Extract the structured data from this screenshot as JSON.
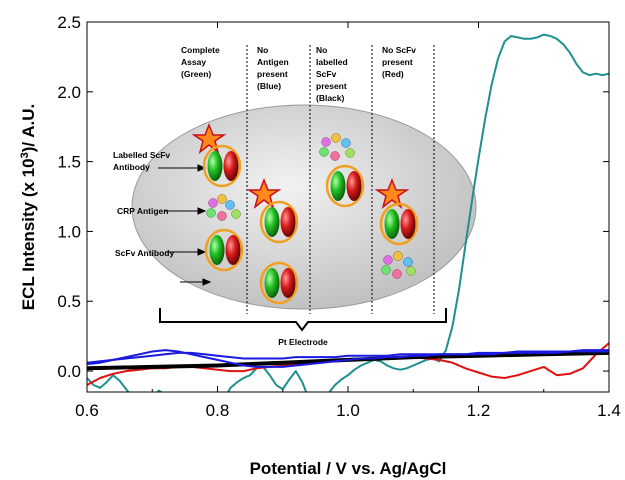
{
  "chart_data": {
    "type": "line",
    "xlabel": "Potential / V vs. Ag/AgCl",
    "ylabel": "ECL Intensity (x 10",
    "ylabel_sup": "3",
    "ylabel_tail": ")/ A.U.",
    "xlim": [
      0.6,
      1.4
    ],
    "ylim": [
      -0.15,
      2.5
    ],
    "x_ticks": [
      "0.6",
      "0.8",
      "1.0",
      "1.2",
      "1.4"
    ],
    "y_ticks": [
      "0.0",
      "0.5",
      "1.0",
      "1.5",
      "2.0",
      "2.5"
    ],
    "x_tick_values": [
      0.6,
      0.8,
      1.0,
      1.2,
      1.4
    ],
    "y_tick_values": [
      0.0,
      0.5,
      1.0,
      1.5,
      2.0,
      2.5
    ],
    "grid": false,
    "legend": "none",
    "series": [
      {
        "color": "#1f8f8f",
        "x": [
          0.6,
          0.61,
          0.62,
          0.63,
          0.64,
          0.65,
          0.66,
          0.67,
          0.68,
          0.69,
          0.7,
          0.71,
          0.72,
          0.73,
          0.74,
          0.75,
          0.76,
          0.77,
          0.78,
          0.79,
          0.8,
          0.81,
          0.82,
          0.83,
          0.84,
          0.85,
          0.86,
          0.87,
          0.88,
          0.89,
          0.9,
          0.91,
          0.92,
          0.93,
          0.94,
          0.95,
          0.96,
          0.97,
          0.98,
          0.99,
          1.0,
          1.01,
          1.02,
          1.03,
          1.04,
          1.05,
          1.06,
          1.07,
          1.08,
          1.09,
          1.1,
          1.11,
          1.12,
          1.13,
          1.14,
          1.15,
          1.16,
          1.17,
          1.18,
          1.19,
          1.2,
          1.21,
          1.22,
          1.23,
          1.24,
          1.25,
          1.26,
          1.27,
          1.28,
          1.29,
          1.3,
          1.31,
          1.32,
          1.33,
          1.34,
          1.35,
          1.36,
          1.37,
          1.38,
          1.39,
          1.4
        ],
        "y": [
          -0.05,
          -0.1,
          -0.12,
          -0.08,
          -0.03,
          -0.07,
          -0.13,
          -0.19,
          -0.25,
          -0.26,
          -0.2,
          -0.14,
          -0.17,
          -0.22,
          -0.25,
          -0.27,
          -0.25,
          -0.2,
          -0.16,
          -0.19,
          -0.24,
          -0.2,
          -0.12,
          -0.08,
          -0.05,
          -0.03,
          0.02,
          0.03,
          -0.03,
          -0.1,
          -0.13,
          -0.06,
          0.0,
          -0.08,
          -0.2,
          -0.26,
          -0.23,
          -0.16,
          -0.1,
          -0.06,
          -0.03,
          0.01,
          0.04,
          0.06,
          0.08,
          0.07,
          0.04,
          0.02,
          0.01,
          0.02,
          0.04,
          0.06,
          0.08,
          0.09,
          0.07,
          0.15,
          0.32,
          0.58,
          0.9,
          1.22,
          1.52,
          1.8,
          2.05,
          2.24,
          2.36,
          2.4,
          2.39,
          2.38,
          2.38,
          2.39,
          2.41,
          2.4,
          2.38,
          2.34,
          2.28,
          2.2,
          2.14,
          2.12,
          2.13,
          2.12,
          2.13
        ]
      },
      {
        "color": "#e01010",
        "x": [
          0.6,
          0.62,
          0.64,
          0.66,
          0.68,
          0.7,
          0.72,
          0.74,
          0.76,
          0.78,
          0.8,
          0.82,
          0.84,
          0.86,
          0.88,
          0.9,
          0.92,
          0.94,
          0.96,
          0.98,
          1.0,
          1.02,
          1.04,
          1.06,
          1.08,
          1.1,
          1.12,
          1.14,
          1.16,
          1.18,
          1.2,
          1.22,
          1.24,
          1.26,
          1.28,
          1.3,
          1.32,
          1.34,
          1.36,
          1.38,
          1.4
        ],
        "y": [
          -0.1,
          -0.05,
          -0.02,
          0.0,
          0.01,
          0.02,
          0.02,
          0.03,
          0.03,
          0.02,
          0.01,
          0.0,
          0.0,
          0.02,
          0.03,
          0.04,
          0.05,
          0.06,
          0.07,
          0.08,
          0.08,
          0.08,
          0.09,
          0.1,
          0.1,
          0.1,
          0.09,
          0.08,
          0.06,
          0.02,
          -0.01,
          -0.04,
          -0.05,
          -0.03,
          0.0,
          0.03,
          -0.03,
          -0.02,
          0.02,
          0.12,
          0.2
        ]
      },
      {
        "color": "#000000",
        "x": [
          0.6,
          0.7,
          0.8,
          0.9,
          1.0,
          1.1,
          1.2,
          1.3,
          1.4
        ],
        "y": [
          0.02,
          0.03,
          0.04,
          0.06,
          0.08,
          0.1,
          0.11,
          0.12,
          0.13
        ]
      },
      {
        "color": "#1a1ae0",
        "x": [
          0.6,
          0.62,
          0.64,
          0.66,
          0.68,
          0.7,
          0.72,
          0.74,
          0.76,
          0.78,
          0.8,
          0.82,
          0.84,
          0.86,
          0.88,
          0.9,
          0.92,
          0.94,
          0.96,
          0.98,
          1.0,
          1.02,
          1.04,
          1.06,
          1.08,
          1.1,
          1.12,
          1.14,
          1.16,
          1.18,
          1.2,
          1.22,
          1.24,
          1.26,
          1.28,
          1.3,
          1.32,
          1.34,
          1.36,
          1.38,
          1.4
        ],
        "y": [
          0.06,
          0.07,
          0.08,
          0.09,
          0.1,
          0.11,
          0.12,
          0.13,
          0.13,
          0.12,
          0.11,
          0.1,
          0.09,
          0.09,
          0.09,
          0.09,
          0.1,
          0.1,
          0.1,
          0.1,
          0.11,
          0.11,
          0.11,
          0.11,
          0.12,
          0.12,
          0.12,
          0.12,
          0.12,
          0.12,
          0.13,
          0.13,
          0.13,
          0.14,
          0.14,
          0.14,
          0.14,
          0.14,
          0.15,
          0.15,
          0.15
        ]
      },
      {
        "color": "#1a1ae0",
        "x": [
          0.6,
          0.62,
          0.64,
          0.66,
          0.68,
          0.7,
          0.72,
          0.74,
          0.76,
          0.78,
          0.8,
          0.82,
          0.84,
          0.86,
          0.88,
          0.9,
          0.92,
          0.94,
          0.96,
          0.98,
          1.0,
          1.02,
          1.04,
          1.06,
          1.08,
          1.1,
          1.12,
          1.14,
          1.16,
          1.18,
          1.2,
          1.22,
          1.24,
          1.26,
          1.28,
          1.3,
          1.32,
          1.34,
          1.36,
          1.38,
          1.4
        ],
        "y": [
          0.05,
          0.06,
          0.08,
          0.1,
          0.12,
          0.14,
          0.15,
          0.14,
          0.12,
          0.1,
          0.08,
          0.06,
          0.04,
          0.03,
          0.03,
          0.03,
          0.04,
          0.05,
          0.06,
          0.07,
          0.08,
          0.09,
          0.09,
          0.1,
          0.1,
          0.11,
          0.11,
          0.12,
          0.12,
          0.12,
          0.12,
          0.12,
          0.13,
          0.13,
          0.13,
          0.13,
          0.13,
          0.14,
          0.14,
          0.14,
          0.14
        ]
      }
    ]
  },
  "inset": {
    "columns": [
      [
        "Complete",
        "Assay",
        "(Green)"
      ],
      [
        "No",
        "Antigen",
        "present",
        "(Blue)"
      ],
      [
        "No",
        "labelled",
        "ScFv",
        "present",
        "(Black)"
      ],
      [
        "No ScFv",
        "present",
        "(Red)"
      ]
    ],
    "labels": [
      [
        "Labelled ScFv",
        "Antibody"
      ],
      [
        "CRP Antigen"
      ],
      [
        "ScFv Antibody"
      ]
    ],
    "electrode": "Pt Electrode"
  }
}
